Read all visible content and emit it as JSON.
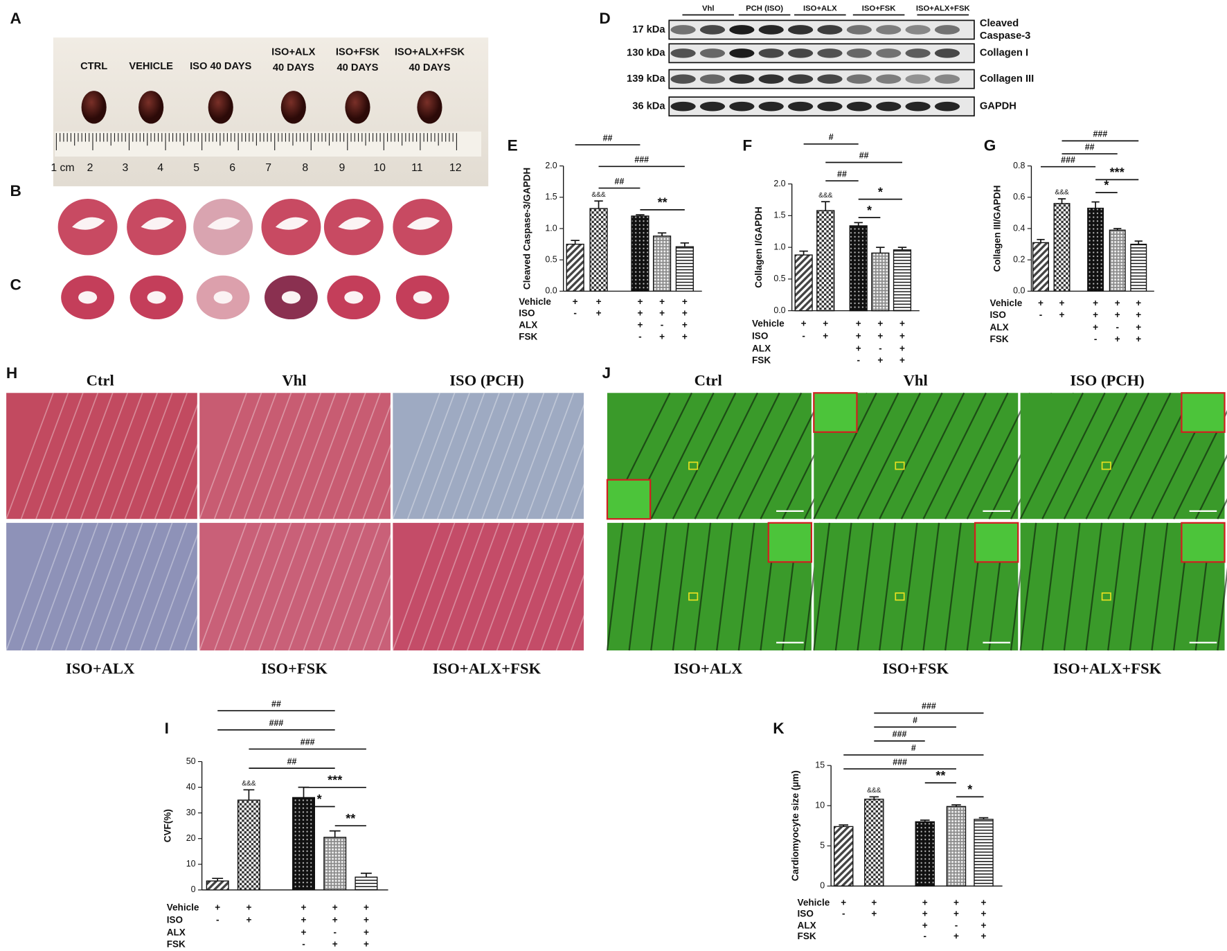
{
  "panel_labels": [
    "A",
    "B",
    "C",
    "D",
    "E",
    "F",
    "G",
    "H",
    "I",
    "J",
    "K"
  ],
  "panel_a": {
    "groups": [
      [
        "CTRL"
      ],
      [
        "VEHICLE"
      ],
      [
        "ISO 40 DAYS"
      ],
      [
        "ISO+ALX",
        "40 DAYS"
      ],
      [
        "ISO+FSK",
        "40 DAYS"
      ],
      [
        "ISO+ALX+FSK",
        "40 DAYS"
      ]
    ],
    "ruler": [
      "1 cm",
      "2",
      "3",
      "4",
      "5",
      "6",
      "7",
      "8",
      "9",
      "10",
      "11",
      "12"
    ]
  },
  "panel_d": {
    "lanes": [
      "Vhl",
      "PCH (ISO)",
      "ISO+ALX",
      "ISO+FSK",
      "ISO+ALX+FSK"
    ],
    "bands": [
      {
        "size": "17 kDa",
        "protein": [
          "Cleaved",
          "Caspase-3"
        ]
      },
      {
        "size": "130 kDa",
        "protein": [
          "Collagen I"
        ]
      },
      {
        "size": "139 kDa",
        "protein": [
          "Collagen III"
        ]
      },
      {
        "size": "36 kDa",
        "protein": [
          "GAPDH"
        ]
      }
    ]
  },
  "panel_h": {
    "top": [
      "Ctrl",
      "Vhl",
      "ISO (PCH)"
    ],
    "bottom": [
      "ISO+ALX",
      "ISO+FSK",
      "ISO+ALX+FSK"
    ]
  },
  "panel_j": {
    "top": [
      "Ctrl",
      "Vhl",
      "ISO (PCH)"
    ],
    "bottom": [
      "ISO+ALX",
      "ISO+FSK",
      "ISO+ALX+FSK"
    ]
  },
  "chart_data": [
    {
      "type": "bar",
      "y_label": "Cleaved Caspase-3/GAPDH",
      "values": [
        0.75,
        1.32,
        1.2,
        0.88,
        0.71
      ],
      "errors": [
        0.06,
        0.12,
        0.02,
        0.05,
        0.06
      ],
      "bar_labels": [
        null,
        "&&&",
        null,
        null,
        null
      ],
      "ylim": [
        0,
        2.0
      ],
      "yticks": [
        {
          "value": 0,
          "label": "0.0"
        },
        0.5,
        {
          "value": 1.0,
          "label": "1.0"
        },
        1.5,
        {
          "value": 2.0,
          "label": "2.0"
        }
      ],
      "annotations": [
        {
          "text": "##",
          "from": 0,
          "to": 2
        },
        {
          "text": "###",
          "from": 1,
          "to": 4
        },
        {
          "text": "##",
          "from": 1,
          "to": 2
        },
        {
          "text": "**",
          "from": 2,
          "to": 4
        }
      ],
      "conditions": [
        {
          "name": "Vehicle",
          "marks": [
            "+",
            "+",
            "+",
            "+",
            "+"
          ]
        },
        {
          "name": "ISO",
          "marks": [
            "-",
            "+",
            "+",
            "+",
            "+"
          ]
        },
        {
          "name": "ALX",
          "marks": [
            null,
            null,
            "+",
            "-",
            "+"
          ]
        },
        {
          "name": "FSK",
          "marks": [
            null,
            null,
            "-",
            "+",
            "+"
          ]
        }
      ]
    },
    {
      "type": "bar",
      "y_label": "Collagen I/GAPDH",
      "values": [
        0.88,
        1.58,
        1.34,
        0.91,
        0.96
      ],
      "errors": [
        0.06,
        0.14,
        0.05,
        0.09,
        0.04
      ],
      "bar_labels": [
        null,
        "&&&",
        null,
        null,
        null
      ],
      "ylim": [
        0,
        2.0
      ],
      "yticks": [
        {
          "value": 0,
          "label": "0.0"
        },
        0.5,
        {
          "value": 1.0,
          "label": "1.0"
        },
        1.5,
        {
          "value": 2.0,
          "label": "2.0"
        }
      ],
      "annotations": [
        {
          "text": "#",
          "from": 0,
          "to": 2
        },
        {
          "text": "##",
          "from": 1,
          "to": 4
        },
        {
          "text": "##",
          "from": 1,
          "to": 2
        },
        {
          "text": "*",
          "from": 2,
          "to": 4
        },
        {
          "text": "*",
          "from": 2,
          "to": 3
        }
      ],
      "conditions": [
        {
          "name": "Vehicle",
          "marks": [
            "+",
            "+",
            "+",
            "+",
            "+"
          ]
        },
        {
          "name": "ISO",
          "marks": [
            "-",
            "+",
            "+",
            "+",
            "+"
          ]
        },
        {
          "name": "ALX",
          "marks": [
            null,
            null,
            "+",
            "-",
            "+"
          ]
        },
        {
          "name": "FSK",
          "marks": [
            null,
            null,
            "-",
            "+",
            "+"
          ]
        }
      ]
    },
    {
      "type": "bar",
      "y_label": "Collagen III/GAPDH",
      "values": [
        0.31,
        0.56,
        0.53,
        0.39,
        0.3
      ],
      "errors": [
        0.02,
        0.03,
        0.04,
        0.01,
        0.02
      ],
      "bar_labels": [
        null,
        "&&&",
        null,
        null,
        null
      ],
      "ylim": [
        0,
        0.8
      ],
      "yticks": [
        {
          "value": 0,
          "label": "0.0"
        },
        0.2,
        0.4,
        0.6,
        0.8
      ],
      "annotations": [
        {
          "text": "###",
          "from": 1,
          "to": 4
        },
        {
          "text": "##",
          "from": 1,
          "to": 3
        },
        {
          "text": "###",
          "from": 0,
          "to": 2
        },
        {
          "text": "***",
          "from": 2,
          "to": 4
        },
        {
          "text": "*",
          "from": 2,
          "to": 3
        }
      ],
      "conditions": [
        {
          "name": "Vehicle",
          "marks": [
            "+",
            "+",
            "+",
            "+",
            "+"
          ]
        },
        {
          "name": "ISO",
          "marks": [
            "-",
            "+",
            "+",
            "+",
            "+"
          ]
        },
        {
          "name": "ALX",
          "marks": [
            null,
            null,
            "+",
            "-",
            "+"
          ]
        },
        {
          "name": "FSK",
          "marks": [
            null,
            null,
            "-",
            "+",
            "+"
          ]
        }
      ]
    },
    {
      "type": "bar",
      "y_label": "CVF(%)",
      "values": [
        3.5,
        35,
        36,
        20.5,
        5
      ],
      "errors": [
        1,
        4,
        4,
        2.5,
        1.5
      ],
      "bar_labels": [
        null,
        "&&&",
        null,
        null,
        null
      ],
      "ylim": [
        0,
        50
      ],
      "yticks": [
        0,
        10,
        20,
        30,
        40,
        50
      ],
      "annotations": [
        {
          "text": "##",
          "from": 0,
          "to": 3
        },
        {
          "text": "###",
          "from": 0,
          "to": 3
        },
        {
          "text": "###",
          "from": 1,
          "to": 4
        },
        {
          "text": "##",
          "from": 1,
          "to": 3
        },
        {
          "text": "***",
          "from": 2,
          "to": 4
        },
        {
          "text": "*",
          "from": 2,
          "to": 3
        },
        {
          "text": "**",
          "from": 3,
          "to": 4
        }
      ],
      "conditions": [
        {
          "name": "Vehicle",
          "marks": [
            "+",
            "+",
            "+",
            "+",
            "+"
          ]
        },
        {
          "name": "ISO",
          "marks": [
            "-",
            "+",
            "+",
            "+",
            "+"
          ]
        },
        {
          "name": "ALX",
          "marks": [
            null,
            null,
            "+",
            "-",
            "+"
          ]
        },
        {
          "name": "FSK",
          "marks": [
            null,
            null,
            "-",
            "+",
            "+"
          ]
        }
      ]
    },
    {
      "type": "bar",
      "y_label": "Cardiomyocyte size (µm)",
      "values": [
        7.4,
        10.8,
        8.0,
        9.9,
        8.3
      ],
      "errors": [
        0.2,
        0.3,
        0.2,
        0.2,
        0.2
      ],
      "bar_labels": [
        null,
        "&&&",
        null,
        null,
        null
      ],
      "ylim": [
        0,
        15
      ],
      "yticks": [
        0,
        5,
        10,
        15
      ],
      "annotations": [
        {
          "text": "###",
          "from": 1,
          "to": 4
        },
        {
          "text": "#",
          "from": 1,
          "to": 3
        },
        {
          "text": "###",
          "from": 1,
          "to": 2
        },
        {
          "text": "#",
          "from": 0,
          "to": 4
        },
        {
          "text": "###",
          "from": 0,
          "to": 3
        },
        {
          "text": "**",
          "from": 2,
          "to": 3
        },
        {
          "text": "*",
          "from": 3,
          "to": 4
        }
      ],
      "conditions": [
        {
          "name": "Vehicle",
          "marks": [
            "+",
            "+",
            "+",
            "+",
            "+"
          ]
        },
        {
          "name": "ISO",
          "marks": [
            "-",
            "+",
            "+",
            "+",
            "+"
          ]
        },
        {
          "name": "ALX",
          "marks": [
            null,
            null,
            "+",
            "-",
            "+"
          ]
        },
        {
          "name": "FSK",
          "marks": [
            null,
            null,
            "-",
            "+",
            "+"
          ]
        }
      ]
    }
  ]
}
